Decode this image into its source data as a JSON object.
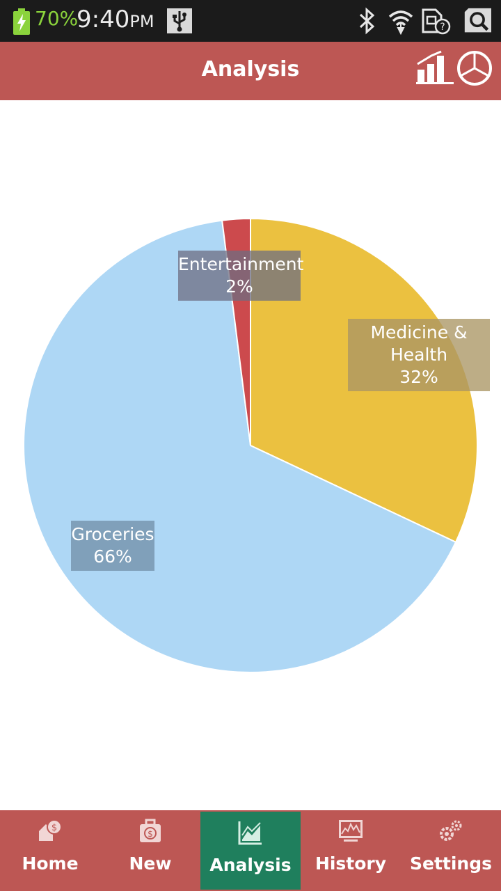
{
  "status_bar": {
    "battery_percent": "70%",
    "time": "9:40",
    "time_suffix": "PM"
  },
  "header": {
    "title": "Analysis",
    "bar_chart_icon": "bar-chart-icon",
    "pie_chart_icon": "pie-chart-icon"
  },
  "chart_data": {
    "type": "pie",
    "slices": [
      {
        "label": "Medicine & Health",
        "value": 32,
        "color": "#ebc140"
      },
      {
        "label": "Groceries",
        "value": 66,
        "color": "#aed7f5"
      },
      {
        "label": "Entertainment",
        "value": 2,
        "color": "#cc4a4d"
      }
    ],
    "labels": [
      {
        "name": "Entertainment",
        "pct": "2%"
      },
      {
        "name_line1": "Medicine &",
        "name_line2": "Health",
        "pct": "32%"
      },
      {
        "name": "Groceries",
        "pct": "66%"
      }
    ]
  },
  "nav": {
    "items": [
      {
        "label": "Home",
        "icon": "home-money-icon"
      },
      {
        "label": "New",
        "icon": "money-bag-icon"
      },
      {
        "label": "Analysis",
        "icon": "line-chart-icon",
        "active": true
      },
      {
        "label": "History",
        "icon": "monitor-chart-icon"
      },
      {
        "label": "Settings",
        "icon": "gears-icon"
      }
    ]
  },
  "colors": {
    "header": "#bd5754",
    "active_tab": "#1f7f5d",
    "status_bar": "#1b1b1b",
    "battery_text": "#8bd33c"
  }
}
